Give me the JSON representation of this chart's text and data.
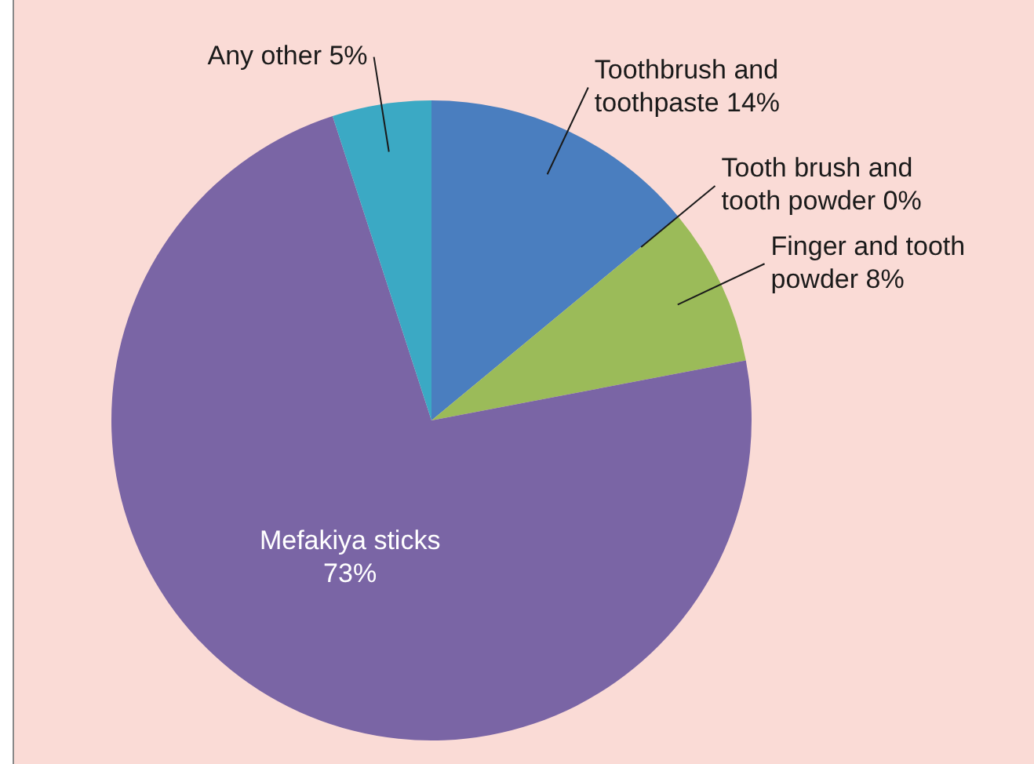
{
  "chart_data": {
    "type": "pie",
    "categories": [
      "Toothbrush and toothpaste",
      "Tooth brush and tooth powder",
      "Finger and tooth powder",
      "Mefakiya sticks",
      "Any other"
    ],
    "values": [
      14,
      0,
      8,
      73,
      5
    ],
    "value_labels": [
      "14%",
      "0%",
      "8%",
      "73%",
      "5%"
    ],
    "colors": [
      "#4a7ebf",
      "#ff0000",
      "#9bbb59",
      "#7a65a5",
      "#3ba9c4"
    ],
    "legend": false
  }
}
